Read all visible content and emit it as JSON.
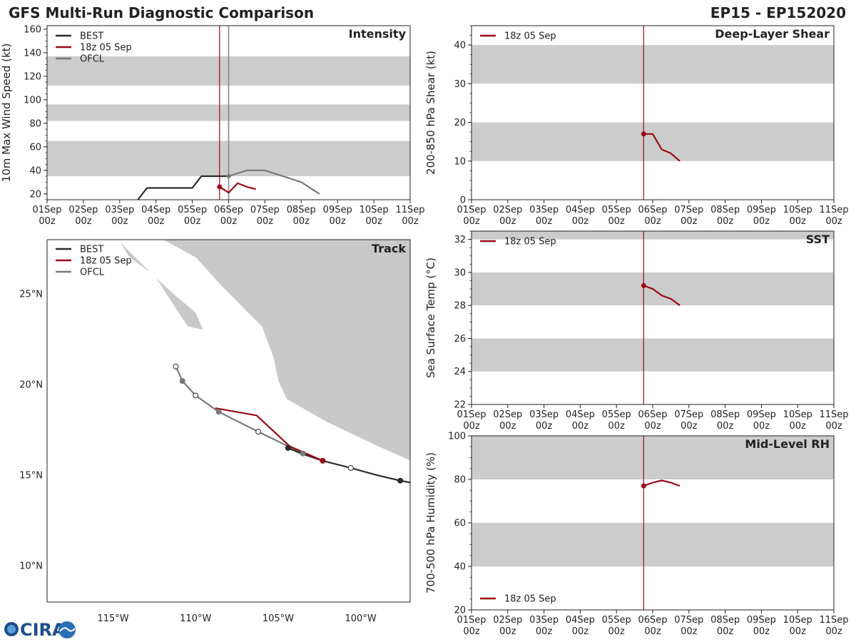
{
  "header": {
    "title": "GFS Multi-Run Diagnostic Comparison",
    "storm": "EP15 - EP152020"
  },
  "logo": {
    "text": "CIRA"
  },
  "colors": {
    "best": "#2b2b2b",
    "run": "#9b0a15",
    "ofcl": "#7a7a7a",
    "band": "#cccccc",
    "vline": "#9b0a15",
    "vline_ofcl": "#888888",
    "land": "#c9c9c9"
  },
  "time_ticks": {
    "days": [
      "01Sep",
      "02Sep",
      "03Sep",
      "04Sep",
      "05Sep",
      "06Sep",
      "07Sep",
      "08Sep",
      "09Sep",
      "10Sep",
      "11Sep"
    ],
    "hour": "00z"
  },
  "chart_data": [
    {
      "id": "intensity",
      "type": "line",
      "title": "Intensity",
      "ylabel": "10m Max Wind Speed (kt)",
      "xlim": [
        0,
        10
      ],
      "ylim": [
        15,
        163
      ],
      "yticks": [
        20,
        40,
        60,
        80,
        100,
        120,
        140,
        160
      ],
      "bands": [
        [
          35,
          65
        ],
        [
          82,
          96
        ],
        [
          112,
          137
        ]
      ],
      "init_time": 4.75,
      "ofcl_time": 5.0,
      "legend": [
        "BEST",
        "18z 05 Sep",
        "OFCL"
      ],
      "series": [
        {
          "name": "BEST",
          "x": [
            2.5,
            2.75,
            3.0,
            3.25,
            3.5,
            3.75,
            4.0,
            4.25,
            4.5,
            4.75,
            5.0
          ],
          "y": [
            15,
            25,
            25,
            25,
            25,
            25,
            25,
            35,
            35,
            35,
            35
          ]
        },
        {
          "name": "18z 05 Sep",
          "x": [
            4.75,
            5.0,
            5.25,
            5.5,
            5.75
          ],
          "y": [
            26,
            21,
            29,
            26,
            24
          ]
        },
        {
          "name": "OFCL",
          "x": [
            5.0,
            5.5,
            6.0,
            7.0,
            7.5
          ],
          "y": [
            35,
            40,
            40,
            30,
            20
          ]
        }
      ]
    },
    {
      "id": "shear",
      "type": "line",
      "title": "Deep-Layer Shear",
      "ylabel": "200-850 hPa Shear (kt)",
      "xlim": [
        0,
        10
      ],
      "ylim": [
        0,
        45
      ],
      "yticks": [
        0,
        10,
        20,
        30,
        40
      ],
      "bands": [
        [
          10,
          20
        ],
        [
          30,
          40
        ]
      ],
      "init_time": 4.75,
      "legend": [
        "18z 05 Sep"
      ],
      "series": [
        {
          "name": "18z 05 Sep",
          "x": [
            4.75,
            5.0,
            5.25,
            5.5,
            5.75
          ],
          "y": [
            17,
            17,
            13,
            12,
            10
          ]
        }
      ]
    },
    {
      "id": "sst",
      "type": "line",
      "title": "SST",
      "ylabel": "Sea Surface Temp (°C)",
      "xlim": [
        0,
        10
      ],
      "ylim": [
        22,
        32.5
      ],
      "yticks": [
        22,
        24,
        26,
        28,
        30,
        32
      ],
      "bands": [
        [
          24,
          26
        ],
        [
          28,
          30
        ],
        [
          32,
          32.5
        ]
      ],
      "init_time": 4.75,
      "legend": [
        "18z 05 Sep"
      ],
      "series": [
        {
          "name": "18z 05 Sep",
          "x": [
            4.75,
            5.0,
            5.25,
            5.5,
            5.75
          ],
          "y": [
            29.2,
            29.0,
            28.6,
            28.4,
            28.0
          ]
        }
      ]
    },
    {
      "id": "rh",
      "type": "line",
      "title": "Mid-Level RH",
      "ylabel": "700-500 hPa Humidity (%)",
      "xlim": [
        0,
        10
      ],
      "ylim": [
        20,
        100
      ],
      "yticks": [
        20,
        40,
        60,
        80,
        100
      ],
      "bands": [
        [
          40,
          60
        ],
        [
          80,
          100
        ]
      ],
      "init_time": 4.75,
      "legend": [
        "18z 05 Sep"
      ],
      "legend_position": "bottom-left",
      "series": [
        {
          "name": "18z 05 Sep",
          "x": [
            4.75,
            5.0,
            5.25,
            5.5,
            5.75
          ],
          "y": [
            77,
            78.5,
            79.5,
            78.5,
            77
          ]
        }
      ]
    },
    {
      "id": "track",
      "type": "scatter",
      "title": "Track",
      "legend": [
        "BEST",
        "18z 05 Sep",
        "OFCL"
      ],
      "xlim": [
        -119.0,
        -97.0
      ],
      "ylim": [
        8.0,
        28.0
      ],
      "lon_ticks": [
        -115,
        -110,
        -105,
        -100
      ],
      "lon_labels": [
        "115°W",
        "110°W",
        "105°W",
        "100°W"
      ],
      "lat_ticks": [
        10,
        15,
        20,
        25
      ],
      "lat_labels": [
        "10°N",
        "15°N",
        "20°N",
        "25°N"
      ],
      "series": [
        {
          "name": "BEST",
          "lon": [
            -97.0,
            -97.6,
            -99.0,
            -100.6,
            -102.3,
            -103.6,
            -104.4
          ],
          "lat": [
            14.6,
            14.7,
            15.0,
            15.4,
            15.8,
            16.2,
            16.5
          ],
          "markers": [
            {
              "lon": -97.6,
              "lat": 14.7,
              "filled": true
            },
            {
              "lon": -100.6,
              "lat": 15.4,
              "filled": false
            },
            {
              "lon": -104.4,
              "lat": 16.5,
              "filled": true
            }
          ]
        },
        {
          "name": "18z 05 Sep",
          "lon": [
            -102.3,
            -104.3,
            -106.3,
            -108.8
          ],
          "lat": [
            15.8,
            16.6,
            18.3,
            18.7
          ],
          "markers": [
            {
              "lon": -102.3,
              "lat": 15.8,
              "filled": true
            }
          ]
        },
        {
          "name": "OFCL",
          "lon": [
            -103.5,
            -106.2,
            -108.6,
            -110.0,
            -110.8,
            -111.2
          ],
          "lat": [
            16.2,
            17.4,
            18.5,
            19.4,
            20.2,
            21.0
          ],
          "markers": [
            {
              "lon": -103.5,
              "lat": 16.2,
              "filled": true
            },
            {
              "lon": -106.2,
              "lat": 17.4,
              "filled": false
            },
            {
              "lon": -108.6,
              "lat": 18.5,
              "filled": true
            },
            {
              "lon": -110.0,
              "lat": 19.4,
              "filled": false
            },
            {
              "lon": -110.8,
              "lat": 20.2,
              "filled": true
            },
            {
              "lon": -111.2,
              "lat": 21.0,
              "filled": false
            }
          ]
        }
      ],
      "land": [
        {
          "name": "mexico-mainland",
          "lon": [
            -112.0,
            -110.0,
            -108.5,
            -106.0,
            -105.3,
            -105.0,
            -104.5,
            -102.0,
            -99.0,
            -97.0,
            -97.0,
            -112.0
          ],
          "lat": [
            28.0,
            27.0,
            25.5,
            23.2,
            21.5,
            20.2,
            19.2,
            17.9,
            16.6,
            15.8,
            28.0,
            28.0
          ]
        },
        {
          "name": "baja-peninsula",
          "lon": [
            -114.7,
            -114.0,
            -112.5,
            -111.3,
            -110.0,
            -109.5,
            -110.5,
            -111.5,
            -112.5,
            -114.7
          ],
          "lat": [
            28.0,
            27.0,
            26.0,
            25.0,
            24.0,
            23.0,
            23.2,
            24.6,
            26.0,
            28.0
          ]
        }
      ]
    }
  ]
}
